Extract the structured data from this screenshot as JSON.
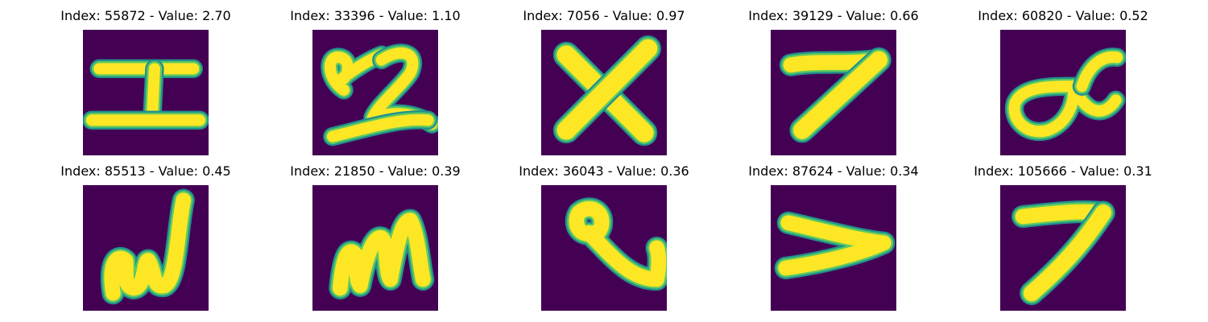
{
  "figure": {
    "background": "#440154",
    "stroke_colors": [
      "#21918c",
      "#5ec962",
      "#fde725"
    ],
    "panels": [
      {
        "title": "Index: 55872 - Value: 2.70",
        "index": "55872",
        "value": "2.70",
        "glyph": "two horizontal bars joined by a short vertical stroke (I-like)"
      },
      {
        "title": "Index: 33396 - Value: 1.10",
        "index": "33396",
        "value": "1.10",
        "glyph": "small loop followed by a 2-like stroke"
      },
      {
        "title": "Index: 7056 - Value: 0.97",
        "index": "7056",
        "value": "0.97",
        "glyph": "X"
      },
      {
        "title": "Index: 39129 - Value: 0.66",
        "index": "39129",
        "value": "0.66",
        "glyph": "7"
      },
      {
        "title": "Index: 60820 - Value: 0.52",
        "index": "60820",
        "value": "0.52",
        "glyph": "alpha-like loop"
      },
      {
        "title": "Index: 85513 - Value: 0.45",
        "index": "85513",
        "value": "0.45",
        "glyph": "w"
      },
      {
        "title": "Index: 21850 - Value: 0.39",
        "index": "21850",
        "value": "0.39",
        "glyph": "m"
      },
      {
        "title": "Index: 36043 - Value: 0.36",
        "index": "36043",
        "value": "0.36",
        "glyph": "loop with a long tail (e/Q-like)"
      },
      {
        "title": "Index: 87624 - Value: 0.34",
        "index": "87624",
        "value": "0.34",
        "glyph": ">"
      },
      {
        "title": "Index: 105666 - Value: 0.31",
        "index": "105666",
        "value": "0.31",
        "glyph": "7"
      }
    ]
  }
}
